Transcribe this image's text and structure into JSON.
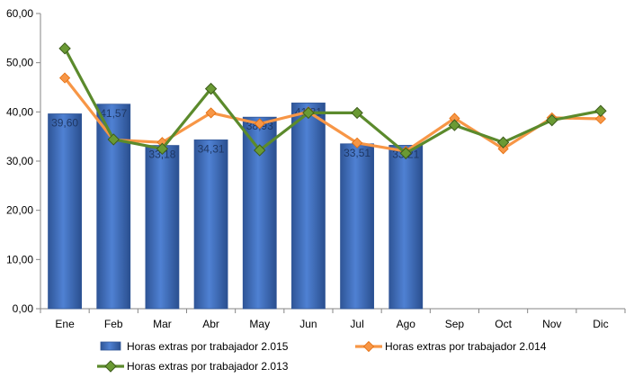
{
  "chart_data": {
    "type": "bar",
    "categories": [
      "Ene",
      "Feb",
      "Mar",
      "Abr",
      "May",
      "Jun",
      "Jul",
      "Ago",
      "Sep",
      "Oct",
      "Nov",
      "Dic"
    ],
    "ylim": [
      0,
      60
    ],
    "yticks": [
      "0,00",
      "10,00",
      "20,00",
      "30,00",
      "40,00",
      "50,00",
      "60,00"
    ],
    "grid": false,
    "legend_position": "bottom",
    "series": [
      {
        "name": "Horas extras por trabajador 2.015",
        "type": "bar",
        "color": "#4472c4",
        "values": [
          39.6,
          41.57,
          33.18,
          34.31,
          38.93,
          41.81,
          33.51,
          33.21,
          null,
          null,
          null,
          null
        ],
        "labels": [
          "39,60",
          "41,57",
          "33,18",
          "34,31",
          "38,93",
          "41,81",
          "33,51",
          "33,21",
          "",
          "",
          "",
          ""
        ]
      },
      {
        "name": "Horas extras por trabajador 2.014",
        "type": "line",
        "color": "#f79646",
        "values": [
          46.9,
          34.3,
          33.8,
          39.8,
          37.6,
          40.0,
          33.7,
          32.0,
          38.7,
          32.5,
          38.8,
          38.6
        ]
      },
      {
        "name": "Horas extras por trabajador 2.013",
        "type": "line",
        "color": "#5b8a2c",
        "values": [
          52.9,
          34.4,
          32.5,
          44.7,
          32.2,
          39.8,
          39.8,
          31.6,
          37.3,
          33.8,
          38.3,
          40.2
        ]
      }
    ]
  }
}
